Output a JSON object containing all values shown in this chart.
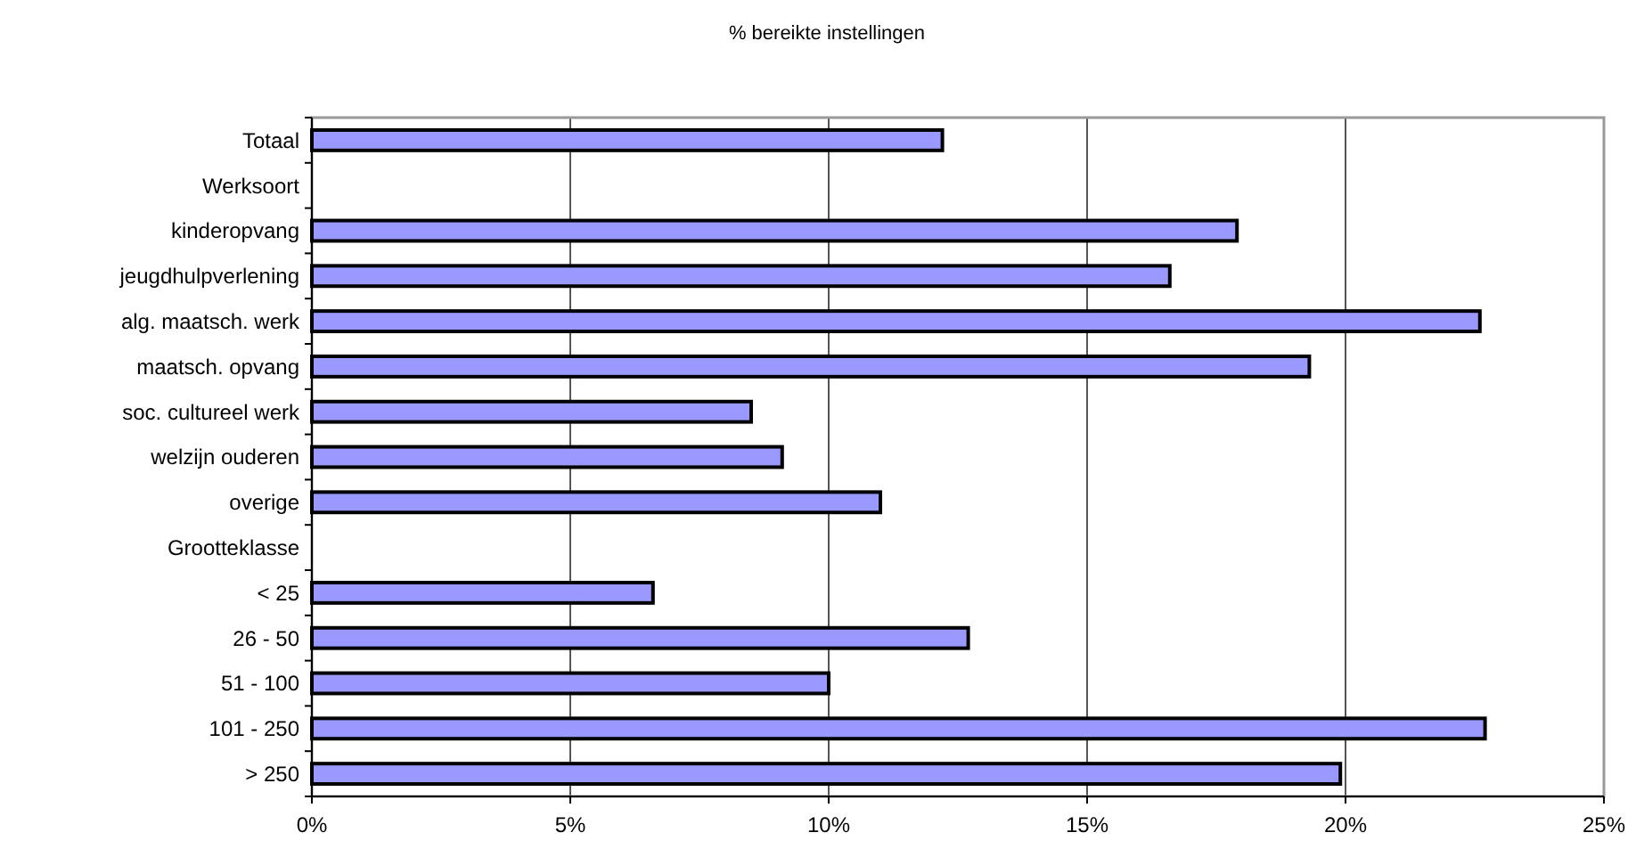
{
  "chart_data": {
    "type": "bar",
    "orientation": "horizontal",
    "title": "% bereikte instellingen",
    "categories": [
      "Totaal",
      "Werksoort",
      "kinderopvang",
      "jeugdhulpverlening",
      "alg. maatsch. werk",
      "maatsch. opvang",
      "soc. cultureel werk",
      "welzijn ouderen",
      "overige",
      "Grootteklasse",
      "< 25",
      "26 - 50",
      "51 - 100",
      "101 - 250",
      "> 250"
    ],
    "values": [
      12.2,
      null,
      17.9,
      16.6,
      22.6,
      19.3,
      8.5,
      9.1,
      11.0,
      null,
      6.6,
      12.7,
      10.0,
      22.7,
      19.9
    ],
    "color": "#9999ff",
    "xlim": [
      0,
      25
    ],
    "xticks": [
      {
        "value": 0,
        "label": "0%"
      },
      {
        "value": 5,
        "label": "5%"
      },
      {
        "value": 10,
        "label": "10%"
      },
      {
        "value": 15,
        "label": "15%"
      },
      {
        "value": 20,
        "label": "20%"
      },
      {
        "value": 25,
        "label": "25%"
      }
    ],
    "grid": "x"
  }
}
